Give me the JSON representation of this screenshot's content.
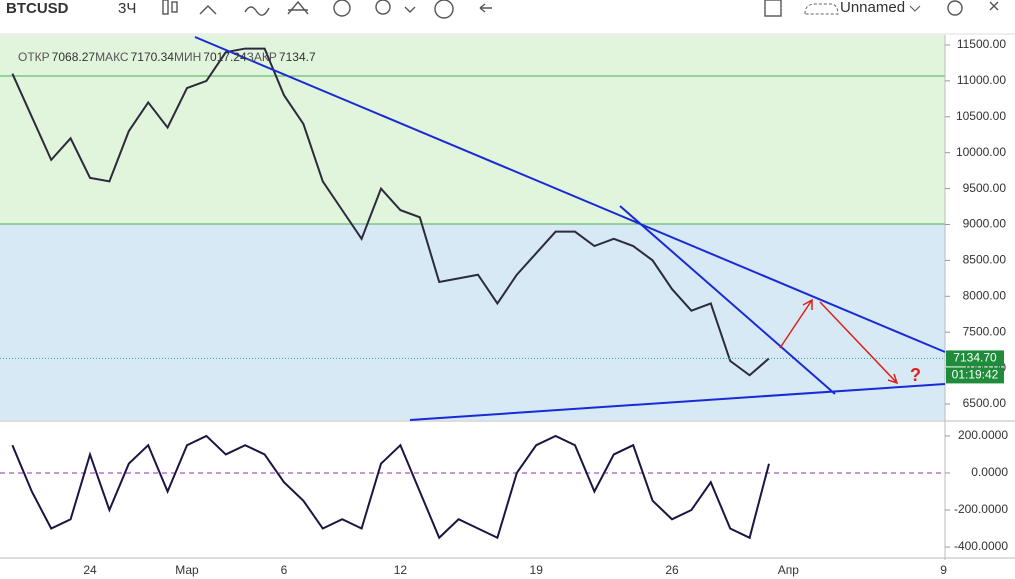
{
  "toolbar": {
    "symbol": "BTCUSD",
    "interval": "3Ч",
    "layout_name": "Unnamed"
  },
  "legend": {
    "open_label": "ОТКР",
    "open": 7068.27,
    "high_label": "МАКС",
    "high": 7170.34,
    "low_label": "МИН",
    "low": 7017.24,
    "close_label": "ЗАКР",
    "close": 7134.7
  },
  "chart_data": {
    "type": "line",
    "categories": [
      null,
      null,
      null,
      null,
      "24",
      null,
      null,
      null,
      null,
      "Мар",
      null,
      null,
      null,
      null,
      "6",
      null,
      null,
      null,
      null,
      null,
      "12",
      null,
      null,
      null,
      null,
      null,
      null,
      "19",
      null,
      null,
      null,
      null,
      null,
      null,
      "26",
      null,
      null,
      null,
      null,
      null,
      "Апр",
      null,
      null,
      null,
      null,
      null,
      null,
      null,
      "9"
    ],
    "series": [
      {
        "color": "#2b2b3b",
        "values": [
          11100,
          10500,
          9900,
          10200,
          9650,
          9600,
          10300,
          10700,
          10350,
          10900,
          11000,
          11400,
          11450,
          11450,
          10800,
          10400,
          9600,
          9200,
          8800,
          9500,
          9200,
          9100,
          8200,
          8250,
          8300,
          7900,
          8300,
          8600,
          8900,
          8900,
          8700,
          8800,
          8700,
          8500,
          8100,
          7800,
          7900,
          7100,
          6900,
          7134.7,
          null,
          null,
          null,
          null,
          null,
          null,
          null,
          null,
          null
        ]
      },
      {
        "color": "#1c1442",
        "axis": "y2",
        "values": [
          150,
          -100,
          -300,
          -250,
          100,
          -200,
          50,
          150,
          -100,
          150,
          200,
          100,
          150,
          100,
          -50,
          -150,
          -300,
          -250,
          -300,
          50,
          150,
          -100,
          -350,
          -250,
          -300,
          -350,
          0,
          150,
          200,
          150,
          -100,
          100,
          150,
          -150,
          -250,
          -200,
          -50,
          -300,
          -350,
          50,
          null,
          null,
          null,
          null,
          null,
          null,
          null,
          null,
          null
        ]
      }
    ],
    "ylim": [
      6277,
      11639
    ],
    "yticks": [
      {
        "value": 6500,
        "label": "6500.00"
      },
      {
        "value": 7000,
        "label": "7000.00"
      },
      {
        "value": 7500,
        "label": "7500.00"
      },
      {
        "value": 8000,
        "label": "8000.00"
      },
      {
        "value": 8500,
        "label": "8500.00"
      },
      {
        "value": 9000,
        "label": "9000.00"
      },
      {
        "value": 9500,
        "label": "9500.00"
      },
      {
        "value": 10000,
        "label": "10000.00"
      },
      {
        "value": 10500,
        "label": "10500.00"
      },
      {
        "value": 11000,
        "label": "11000.00"
      },
      {
        "value": 11500,
        "label": "11500.00"
      }
    ],
    "y2lim": [
      -443,
      259
    ],
    "y2ticks": [
      {
        "value": 200,
        "label": "200.0000"
      },
      {
        "value": 0,
        "label": "0.0000"
      },
      {
        "value": -200,
        "label": "-200.0000"
      },
      {
        "value": -400,
        "label": "-400.0000"
      }
    ],
    "last_price": {
      "value": 7134.7,
      "label": "7134.70"
    },
    "countdown": "01:19:42"
  }
}
